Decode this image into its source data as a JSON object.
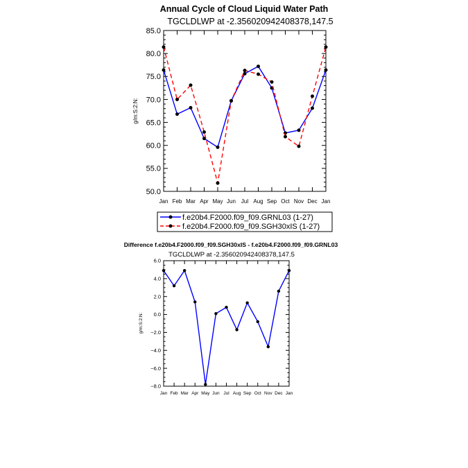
{
  "chart_data": [
    {
      "type": "line",
      "title": "Annual Cycle of Cloud Liquid Water Path",
      "subtitle": "TGCLDLWP  at  -2.356020942408378,147.5",
      "ylabel": "g/m:S:2:N:",
      "ylim": [
        50,
        85
      ],
      "yticks": [
        "50.0",
        "55.0",
        "60.0",
        "65.0",
        "70.0",
        "75.0",
        "80.0",
        "85.0"
      ],
      "categories": [
        "Jan",
        "Feb",
        "Mar",
        "Apr",
        "May",
        "Jun",
        "Jul",
        "Aug",
        "Sep",
        "Oct",
        "Nov",
        "Dec",
        "Jan"
      ],
      "series": [
        {
          "name": "f.e20b4.F2000.f09_f09.GRNL03 (1-27)",
          "color": "#0000ff",
          "dash": "solid",
          "values": [
            76.4,
            66.8,
            68.2,
            61.5,
            59.6,
            69.7,
            75.6,
            77.2,
            72.5,
            62.7,
            63.3,
            68.1,
            76.4
          ]
        },
        {
          "name": "f.e20b4.F2000.f09_f09.SGH30xIS (1-27)",
          "color": "#ff0000",
          "dash": "dashed",
          "values": [
            81.4,
            70.0,
            73.1,
            62.9,
            51.8,
            69.7,
            76.3,
            75.5,
            73.8,
            61.9,
            59.8,
            70.7,
            81.4
          ]
        }
      ],
      "legend": "below",
      "grid": false
    },
    {
      "type": "line",
      "title": "Difference f.e20b4.F2000.f09_f09.SGH30xIS - f.e20b4.F2000.f09_f09.GRNL03",
      "subtitle": "TGCLDLWP  at  -2.356020942408378,147.5",
      "ylabel": "g/m:S:2:N:",
      "ylim": [
        -8,
        6
      ],
      "yticks": [
        "−8.0",
        "−6.0",
        "−4.0",
        "−2.0",
        "0.0",
        "2.0",
        "4.0",
        "6.0"
      ],
      "categories": [
        "Jan",
        "Feb",
        "Mar",
        "Apr",
        "May",
        "Jun",
        "Jul",
        "Aug",
        "Sep",
        "Oct",
        "Nov",
        "Dec",
        "Jan"
      ],
      "series": [
        {
          "color": "#0000ff",
          "values": [
            4.9,
            3.2,
            4.9,
            1.4,
            -7.8,
            0.1,
            0.8,
            -1.7,
            1.3,
            -0.8,
            -3.6,
            2.6,
            4.9
          ]
        }
      ],
      "grid": false
    }
  ]
}
